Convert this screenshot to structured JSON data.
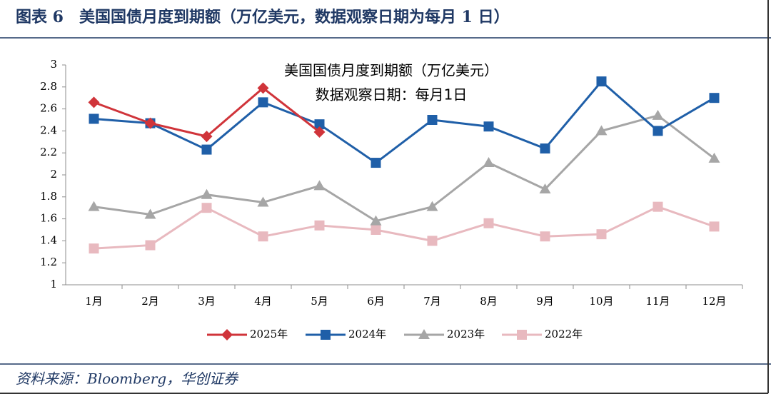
{
  "header": {
    "title": "图表 6　美国国债月度到期额（万亿美元，数据观察日期为每月 1 日）"
  },
  "chart_data": {
    "type": "line",
    "title": "美国国债月度到期额（万亿美元）",
    "subtitle": "数据观察日期：每月1日",
    "categories": [
      "1月",
      "2月",
      "3月",
      "4月",
      "5月",
      "6月",
      "7月",
      "8月",
      "9月",
      "10月",
      "11月",
      "12月"
    ],
    "series": [
      {
        "name": "2025年",
        "color": "#d0343a",
        "marker": "diamond",
        "values": [
          2.66,
          2.47,
          2.35,
          2.79,
          2.39,
          null,
          null,
          null,
          null,
          null,
          null,
          null
        ]
      },
      {
        "name": "2024年",
        "color": "#1f5fa8",
        "marker": "square",
        "values": [
          2.51,
          2.47,
          2.23,
          2.66,
          2.46,
          2.11,
          2.5,
          2.44,
          2.24,
          2.85,
          2.4,
          2.7
        ]
      },
      {
        "name": "2023年",
        "color": "#a6a6a6",
        "marker": "triangle",
        "values": [
          1.71,
          1.64,
          1.82,
          1.75,
          1.9,
          1.58,
          1.71,
          2.11,
          1.87,
          2.4,
          2.54,
          2.15
        ]
      },
      {
        "name": "2022年",
        "color": "#e8b9bf",
        "marker": "square",
        "values": [
          1.33,
          1.36,
          1.7,
          1.44,
          1.54,
          1.5,
          1.4,
          1.56,
          1.44,
          1.46,
          1.71,
          1.53
        ]
      }
    ],
    "ylim": [
      1,
      3
    ],
    "yticks": [
      3,
      2.8,
      2.6,
      2.4,
      2.2,
      2,
      1.8,
      1.6,
      1.4,
      1.2,
      1
    ],
    "legend": "bottom"
  },
  "footer": {
    "source": "资料来源：Bloomberg，华创证券"
  }
}
